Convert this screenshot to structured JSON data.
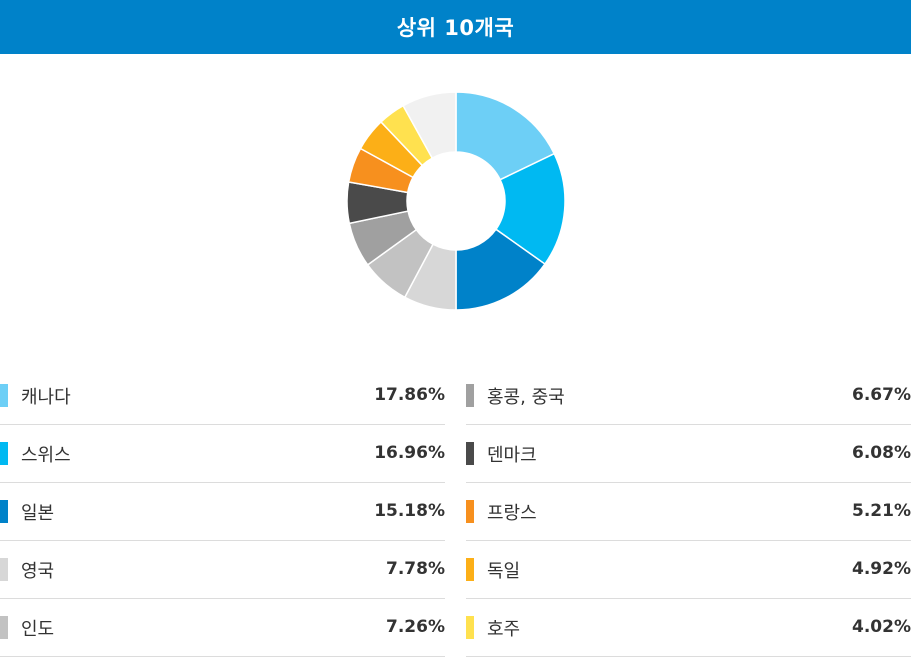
{
  "header": {
    "title": "상위 10개국"
  },
  "colors": {
    "header_bg": "#0082c9"
  },
  "chart_data": {
    "type": "pie",
    "style": "donut",
    "title": "상위 10개국",
    "slices": [
      {
        "label": "캐나다",
        "value": 17.86,
        "display": "17.86%",
        "color": "#6dcff6"
      },
      {
        "label": "스위스",
        "value": 16.96,
        "display": "16.96%",
        "color": "#00b9f2"
      },
      {
        "label": "일본",
        "value": 15.18,
        "display": "15.18%",
        "color": "#0082c9"
      },
      {
        "label": "영국",
        "value": 7.78,
        "display": "7.78%",
        "color": "#d7d7d7"
      },
      {
        "label": "인도",
        "value": 7.26,
        "display": "7.26%",
        "color": "#c2c2c2"
      },
      {
        "label": "홍콩, 중국",
        "value": 6.67,
        "display": "6.67%",
        "color": "#a0a0a0"
      },
      {
        "label": "덴마크",
        "value": 6.08,
        "display": "6.08%",
        "color": "#4a4a4a"
      },
      {
        "label": "프랑스",
        "value": 5.21,
        "display": "5.21%",
        "color": "#f7901e"
      },
      {
        "label": "독일",
        "value": 4.92,
        "display": "4.92%",
        "color": "#fcaf17"
      },
      {
        "label": "호주",
        "value": 4.02,
        "display": "4.02%",
        "color": "#ffe14f"
      }
    ],
    "remainder": {
      "value": 8.06,
      "color": "#f1f1f1"
    }
  }
}
